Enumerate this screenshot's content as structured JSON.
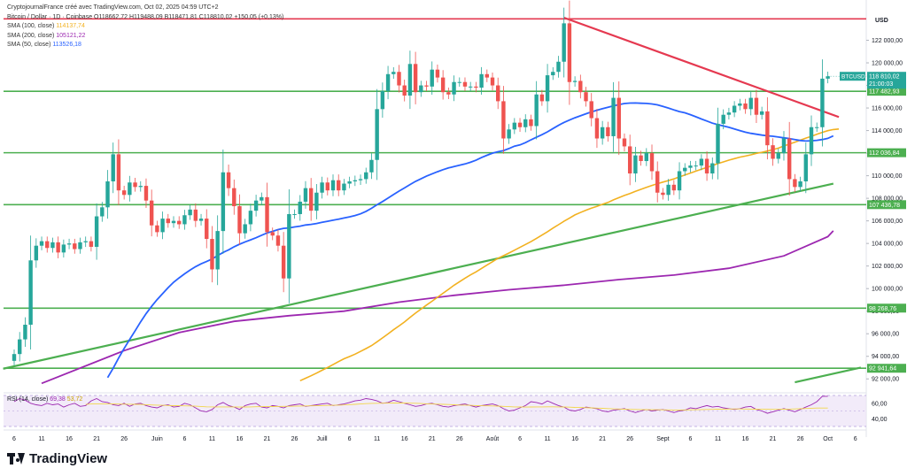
{
  "header": {
    "title_line": "CryptojournalFrance créé avec TradingView.com, Oct 02, 2025 04:59 UTC+2",
    "symbol_line": "Bitcoin / Dollar · 1D · Coinbase  O118662,72  H119488,09  B118471,81  C118810,02  +150,05 (+0,13%)",
    "indicators": [
      {
        "label": "SMA (100, close)",
        "value": "114137,74",
        "color": "#f2b120"
      },
      {
        "label": "SMA (200, close)",
        "value": "105121,22",
        "color": "#9c27b0"
      },
      {
        "label": "SMA (50, close)",
        "value": "113526,18",
        "color": "#2962ff"
      }
    ]
  },
  "brand": "TradingView",
  "currency": "USD",
  "colors": {
    "up": "#26a69a",
    "down": "#ef5350",
    "sma50": "#2962ff",
    "sma100": "#f2b120",
    "sma200": "#9c27b0",
    "support": "#4caf50",
    "resistance": "#e53950",
    "trend": "#43a047",
    "rsi": "#9c27b0",
    "rsi_ma": "#f2d64b"
  },
  "chart_data": {
    "type": "candlestick",
    "symbol": "BTCUSD",
    "ylim": [
      91000,
      124000
    ],
    "y_ticks": [
      "122 000,00",
      "120 000,00",
      "118 000,00",
      "116 000,00",
      "114 000,00",
      "112 000,00",
      "110 000,00",
      "108 000,00",
      "106 000,00",
      "104 000,00",
      "102 000,00",
      "100 000,00",
      "98 000,00",
      "96 000,00",
      "94 000,00",
      "92 000,00"
    ],
    "y_tick_values": [
      122000,
      120000,
      118000,
      116000,
      114000,
      112000,
      110000,
      108000,
      106000,
      104000,
      102000,
      100000,
      98000,
      96000,
      94000,
      92000
    ],
    "x_ticks": [
      {
        "label": "6",
        "day": 0
      },
      {
        "label": "11",
        "day": 5
      },
      {
        "label": "16",
        "day": 10
      },
      {
        "label": "21",
        "day": 15
      },
      {
        "label": "26",
        "day": 20
      },
      {
        "label": "Juin",
        "day": 26
      },
      {
        "label": "6",
        "day": 31
      },
      {
        "label": "11",
        "day": 36
      },
      {
        "label": "16",
        "day": 41
      },
      {
        "label": "21",
        "day": 46
      },
      {
        "label": "26",
        "day": 51
      },
      {
        "label": "Juill",
        "day": 56
      },
      {
        "label": "6",
        "day": 61
      },
      {
        "label": "11",
        "day": 66
      },
      {
        "label": "16",
        "day": 71
      },
      {
        "label": "21",
        "day": 76
      },
      {
        "label": "26",
        "day": 81
      },
      {
        "label": "Août",
        "day": 87
      },
      {
        "label": "6",
        "day": 92
      },
      {
        "label": "11",
        "day": 97
      },
      {
        "label": "16",
        "day": 102
      },
      {
        "label": "21",
        "day": 107
      },
      {
        "label": "26",
        "day": 112
      },
      {
        "label": "Sept",
        "day": 118
      },
      {
        "label": "6",
        "day": 123
      },
      {
        "label": "11",
        "day": 128
      },
      {
        "label": "16",
        "day": 133
      },
      {
        "label": "21",
        "day": 138
      },
      {
        "label": "26",
        "day": 143
      },
      {
        "label": "Oct",
        "day": 148
      },
      {
        "label": "6",
        "day": 153
      }
    ],
    "price_tag": {
      "symbol": "BTCUSD",
      "price": "118 810,02",
      "countdown": "21:00:03",
      "value": 118810
    },
    "horizontal_levels": [
      {
        "value": 123900,
        "label": "",
        "color": "resistance"
      },
      {
        "value": 117482.93,
        "label": "117 482,93",
        "color": "support"
      },
      {
        "value": 112036.84,
        "label": "112 036,84",
        "color": "support"
      },
      {
        "value": 107436.78,
        "label": "107 436,78",
        "color": "support"
      },
      {
        "value": 98268.76,
        "label": "98 268,76",
        "color": "support"
      },
      {
        "value": 92941.64,
        "label": "92 941,64",
        "color": "support"
      }
    ],
    "trend_lines": [
      {
        "color": "resistance",
        "from": [
          100,
          124000
        ],
        "to": [
          150,
          115200
        ]
      },
      {
        "color": "support",
        "from": [
          -2,
          92900
        ],
        "to": [
          149,
          109300
        ]
      },
      {
        "color": "support",
        "from": [
          142,
          91700
        ],
        "to": [
          154,
          93000
        ]
      }
    ],
    "closes": [
      94200,
      95500,
      96800,
      102500,
      103800,
      104200,
      103600,
      104100,
      103200,
      103900,
      104000,
      103500,
      104100,
      104200,
      103700,
      106400,
      107200,
      109500,
      111900,
      108700,
      108300,
      109400,
      109000,
      109100,
      107800,
      105600,
      105000,
      106200,
      105800,
      106000,
      105700,
      106500,
      107000,
      106000,
      106200,
      104400,
      101700,
      105100,
      110300,
      108900,
      107300,
      104900,
      105700,
      106900,
      107800,
      108100,
      105000,
      104700,
      103800,
      100900,
      106600,
      106600,
      107700,
      108900,
      106900,
      108500,
      109400,
      108700,
      109600,
      108700,
      109300,
      109500,
      109600,
      109700,
      110300,
      111400,
      115900,
      117500,
      119000,
      119200,
      118000,
      117100,
      119900,
      117400,
      118000,
      117900,
      119400,
      118700,
      117400,
      117200,
      118300,
      118300,
      117900,
      117900,
      117800,
      119000,
      118700,
      118000,
      116600,
      113300,
      114100,
      114700,
      114300,
      115000,
      114400,
      117200,
      116600,
      118900,
      119200,
      120100,
      123500,
      118300,
      118400,
      117400,
      116600,
      115100,
      113300,
      114300,
      113500,
      116900,
      113300,
      112600,
      110200,
      111800,
      111300,
      112000,
      110400,
      108500,
      108300,
      109200,
      108700,
      110400,
      110700,
      110900,
      110900,
      111500,
      110200,
      111100,
      114600,
      115400,
      115600,
      116200,
      116400,
      115900,
      116900,
      115400,
      115700,
      112700,
      111500,
      112000,
      113300,
      109700,
      109000,
      109500,
      111900,
      114300,
      114300,
      118600,
      118810
    ],
    "sma50": [
      null,
      null,
      null,
      null,
      null,
      null,
      null,
      null,
      null,
      null,
      null,
      null,
      null,
      null,
      null,
      null,
      null,
      92110,
      92935,
      93844,
      94689,
      95481,
      96269,
      97062,
      97785,
      98434,
      99027,
      99549,
      100087,
      100566,
      100949,
      101310,
      101639,
      101939,
      102195,
      102395,
      102623,
      102919,
      103205,
      103435,
      103709,
      103930,
      104139,
      104315,
      104502,
      104722,
      104926,
      105073,
      105230,
      105337,
      105376,
      105462,
      105534,
      105632,
      105691,
      105765,
      105866,
      105965,
      106056,
      106150,
      106252,
      106356,
      106477,
      106626,
      106840,
      107115,
      107433,
      107713,
      108019,
      108334,
      108634,
      108918,
      109214,
      109496,
      109726,
      109958,
      110154,
      110354,
      110530,
      110689,
      110815,
      110928,
      111046,
      111194,
      111374,
      111610,
      111813,
      111999,
      112127,
      112227,
      112409,
      112617,
      112727,
      112933,
      113185,
      113407,
      113640,
      113885,
      114180,
      114458,
      114721,
      114934,
      115135,
      115307,
      115489,
      115655,
      115799,
      115938,
      116057,
      116195,
      116304,
      116397,
      116436,
      116444,
      116419,
      116403,
      116359,
      116282,
      116141,
      115994,
      115830,
      115685,
      115571,
      115406,
      115219,
      115022,
      114845,
      114655,
      114527,
      114409,
      114287,
      114145,
      113996,
      113860,
      113753,
      113674,
      113601,
      113536,
      113496,
      113426,
      113355,
      113295,
      113205,
      113120,
      113074,
      113099,
      113137,
      113208,
      113310,
      113526
    ],
    "sma100": [
      null,
      null,
      null,
      null,
      null,
      null,
      null,
      null,
      null,
      null,
      null,
      null,
      null,
      null,
      null,
      null,
      null,
      null,
      null,
      null,
      null,
      null,
      null,
      null,
      null,
      null,
      null,
      null,
      null,
      null,
      null,
      null,
      null,
      null,
      null,
      null,
      null,
      null,
      null,
      null,
      null,
      null,
      null,
      null,
      null,
      null,
      null,
      null,
      null,
      null,
      null,
      null,
      91838,
      92062,
      92279,
      92516,
      92765,
      93006,
      93269,
      93535,
      93782,
      93978,
      94188,
      94432,
      94683,
      94949,
      95290,
      95634,
      95989,
      96354,
      96692,
      97046,
      97447,
      97830,
      98177,
      98537,
      98879,
      99229,
      99582,
      99937,
      100294,
      100612,
      100922,
      101214,
      101480,
      101789,
      102085,
      102384,
      102676,
      102918,
      103150,
      103404,
      103650,
      103912,
      104164,
      104454,
      104739,
      105039,
      105362,
      105659,
      105960,
      106241,
      106525,
      106743,
      106944,
      107124,
      107290,
      107470,
      107634,
      107860,
      108056,
      108252,
      108427,
      108623,
      108792,
      108974,
      109137,
      109297,
      109438,
      109569,
      109715,
      109892,
      110061,
      110232,
      110408,
      110573,
      110736,
      110894,
      111072,
      111227,
      111377,
      111512,
      111647,
      111743,
      111850,
      111979,
      112079,
      112190,
      112309,
      112447,
      112632,
      112808,
      112961,
      113152,
      113330,
      113485,
      113669,
      113840,
      113993,
      114095,
      114137
    ],
    "sma200": [
      null,
      null,
      null,
      null,
      null,
      null,
      null,
      null,
      null,
      null,
      null,
      null,
      null,
      null,
      null,
      null,
      null,
      null,
      null,
      null,
      null,
      null,
      null,
      null,
      null,
      null,
      null,
      null,
      null,
      null,
      null,
      null,
      null,
      null,
      null,
      null,
      null,
      null,
      null,
      null,
      null,
      null,
      null,
      null,
      null,
      null,
      null,
      null,
      null,
      null,
      null,
      null,
      null,
      null,
      null,
      null,
      null,
      null,
      null,
      null,
      null,
      null,
      null,
      null,
      null,
      null,
      null,
      null,
      null,
      null,
      null,
      null,
      null,
      null,
      null,
      null,
      null,
      null,
      null,
      null,
      null,
      null,
      null,
      null,
      null,
      null,
      null,
      null,
      null,
      null,
      null,
      null,
      null,
      null,
      null,
      null,
      null,
      null,
      null,
      null,
      null,
      null,
      null,
      null,
      null,
      null,
      null,
      null,
      null,
      null,
      null,
      null,
      null,
      null,
      null,
      null,
      null,
      null,
      null,
      null,
      null,
      null,
      null,
      null,
      null,
      null,
      null,
      null,
      null,
      null,
      null,
      null,
      null,
      null,
      null,
      null,
      null,
      null,
      null,
      null,
      null,
      null,
      null,
      null,
      null,
      null,
      null,
      null,
      null,
      105121
    ],
    "sma200_path": [
      [
        5,
        91600
      ],
      [
        20,
        94500
      ],
      [
        30,
        96100
      ],
      [
        40,
        97100
      ],
      [
        50,
        97600
      ],
      [
        60,
        98000
      ],
      [
        70,
        98800
      ],
      [
        80,
        99400
      ],
      [
        90,
        99900
      ],
      [
        100,
        100300
      ],
      [
        110,
        100800
      ],
      [
        120,
        101200
      ],
      [
        130,
        101800
      ],
      [
        140,
        102900
      ],
      [
        148,
        104600
      ],
      [
        149,
        105121
      ]
    ],
    "rsi": {
      "label": "RSI (14, close)",
      "value": "69,38",
      "ma_value": "53,72",
      "ylim": [
        30,
        70
      ],
      "ticks": [
        "60,00",
        "40,00"
      ],
      "tick_values": [
        60,
        40
      ],
      "band": [
        30,
        70
      ],
      "values": [
        62,
        66,
        64,
        60,
        58,
        57,
        60,
        58,
        59,
        55,
        58,
        60,
        56,
        57,
        63,
        66,
        62,
        61,
        58,
        57,
        60,
        56,
        59,
        60,
        57,
        55,
        54,
        57,
        58,
        55,
        56,
        60,
        58,
        54,
        50,
        49,
        52,
        58,
        61,
        57,
        55,
        52,
        57,
        59,
        60,
        55,
        54,
        57,
        56,
        54,
        57,
        58,
        59,
        56,
        57,
        58,
        59,
        60,
        57,
        58,
        59,
        61,
        63,
        64,
        66,
        65,
        63,
        60,
        61,
        64,
        62,
        60,
        58,
        56,
        57,
        59,
        60,
        58,
        56,
        55,
        57,
        58,
        59,
        57,
        55,
        57,
        58,
        59,
        57,
        53,
        50,
        51,
        54,
        57,
        62,
        61,
        59,
        63,
        60,
        57,
        55,
        51,
        50,
        52,
        55,
        54,
        53,
        50,
        49,
        51,
        52,
        53,
        50,
        48,
        50,
        52,
        50,
        51,
        52,
        50,
        48,
        50,
        51,
        54,
        53,
        55,
        57,
        55,
        56,
        54,
        53,
        52,
        53,
        55,
        56,
        52,
        50,
        47,
        49,
        51,
        53,
        51,
        49,
        52,
        55,
        58,
        62,
        69,
        69
      ],
      "ma": [
        null,
        null,
        null,
        null,
        null,
        null,
        null,
        null,
        null,
        null,
        null,
        null,
        null,
        58.5,
        59,
        59.2,
        59.3,
        59.2,
        59,
        58.9,
        58.8,
        58.7,
        58.6,
        58.4,
        58.1,
        57.8,
        57.5,
        57.3,
        57.1,
        56.9,
        56.7,
        56.6,
        56.5,
        56.2,
        55.8,
        55.4,
        55.2,
        55.2,
        55.3,
        55.3,
        55.2,
        55,
        55.1,
        55.3,
        55.5,
        55.6,
        55.6,
        55.7,
        55.8,
        55.9,
        56.1,
        56.2,
        56.4,
        56.5,
        56.6,
        56.8,
        57,
        57.2,
        57.3,
        57.6,
        57.8,
        58.2,
        58.6,
        59,
        59.5,
        59.8,
        60,
        60.1,
        60.2,
        60.3,
        60.4,
        60.3,
        60.1,
        59.9,
        59.6,
        59.3,
        59,
        58.8,
        58.6,
        58.3,
        58,
        57.7,
        57.5,
        57.3,
        57,
        56.7,
        56.6,
        56.5,
        56.3,
        56,
        55.6,
        55.3,
        55.1,
        55,
        55.1,
        55.2,
        55.3,
        55.4,
        55.4,
        55.3,
        55.1,
        54.9,
        54.6,
        54.4,
        54.2,
        54,
        53.7,
        53.4,
        53.1,
        52.7,
        52.5,
        52.3,
        52.1,
        51.9,
        51.8,
        51.7,
        51.6,
        51.6,
        51.5,
        51.4,
        51.3,
        51.3,
        51.4,
        51.5,
        51.6,
        51.8,
        52,
        52.1,
        52.3,
        52.4,
        52.5,
        52.6,
        52.6,
        52.5,
        52.4,
        52.3,
        52.2,
        52.2,
        52.1,
        52.2,
        52.3,
        52.4,
        52.6,
        52.9,
        53.2,
        53.5,
        53.72,
        53.72,
        53.72
      ]
    }
  }
}
